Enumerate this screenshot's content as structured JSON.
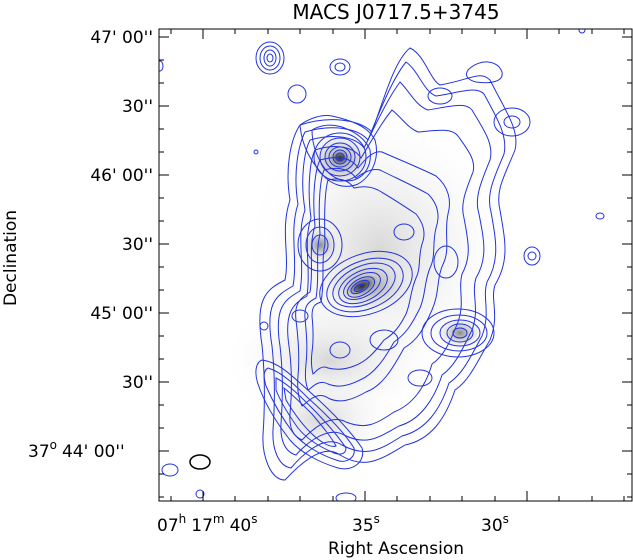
{
  "figure": {
    "title": "MACS J0717.5+3745",
    "xlabel": "Right Ascension",
    "ylabel": "Declination",
    "ra_ticks": [
      {
        "h": "07",
        "hsup": "h",
        "m": "17",
        "msup": "m",
        "s": "40",
        "ssup": "s"
      },
      {
        "s": "35",
        "ssup": "s"
      },
      {
        "s": "30",
        "ssup": "s"
      }
    ],
    "dec_ticks": [
      {
        "label": "47' 00''"
      },
      {
        "label": "30''"
      },
      {
        "label": "46' 00''"
      },
      {
        "label": "30''"
      },
      {
        "label": "45' 00''"
      },
      {
        "label": "30''"
      },
      {
        "deg": "37",
        "degsup": "o",
        "label": "44' 00''"
      }
    ],
    "colors": {
      "contour": "#2233dd",
      "frame": "#000000",
      "background": "#ffffff",
      "grayscale_peak": "#1a1a1a"
    },
    "features": {
      "contours": "blue radio contours overlaid on greyscale X-ray/optical image",
      "beam": "elliptical beam marker in lower-left corner"
    }
  }
}
